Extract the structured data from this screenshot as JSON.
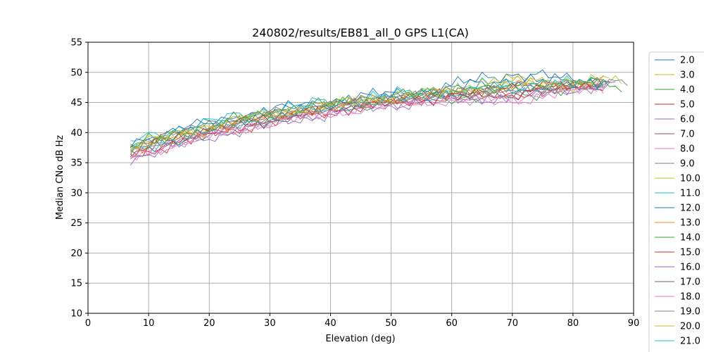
{
  "chart_data": {
    "type": "line",
    "title": "240802/results/EB81_all_0 GPS L1(CA)",
    "xlabel": "Elevation (deg)",
    "ylabel": "Median CNo dB Hz",
    "xlim": [
      0,
      90
    ],
    "ylim": [
      10,
      55
    ],
    "xticks": [
      "0",
      "10",
      "20",
      "30",
      "40",
      "50",
      "60",
      "70",
      "80",
      "90"
    ],
    "yticks": [
      "10",
      "15",
      "20",
      "25",
      "30",
      "35",
      "40",
      "45",
      "50",
      "55"
    ],
    "grid": true,
    "legend_position": "right, outside plot area",
    "x": [
      7,
      8,
      9,
      10,
      11,
      12,
      13,
      14,
      15,
      16,
      17,
      18,
      19,
      20,
      21,
      22,
      23,
      24,
      25,
      26,
      27,
      28,
      29,
      30,
      31,
      32,
      33,
      34,
      35,
      36,
      37,
      38,
      39,
      40,
      41,
      42,
      43,
      44,
      45,
      46,
      47,
      48,
      49,
      50,
      51,
      52,
      53,
      54,
      55,
      56,
      57,
      58,
      59,
      60,
      61,
      62,
      63,
      64,
      65,
      66,
      67,
      68,
      69,
      70,
      71,
      72,
      73,
      74,
      75,
      76,
      77,
      78,
      79,
      80,
      81,
      82,
      83,
      84,
      85,
      86,
      87,
      88,
      89
    ],
    "colors": [
      "#1f77b4",
      "#bcbd22",
      "#2ca02c",
      "#d62728",
      "#9467bd",
      "#8c564b",
      "#e377c2",
      "#7f7f7f",
      "#bcbd22",
      "#17becf",
      "#1f77b4",
      "#ff7f0e",
      "#2ca02c",
      "#d62728",
      "#9467bd",
      "#8c564b",
      "#e377c2",
      "#7f7f7f",
      "#bcbd22",
      "#17becf"
    ],
    "series": [
      {
        "name": "2.0",
        "start": 7,
        "end": 85,
        "y0": 38.0,
        "shape": 1.4,
        "bump": 1.5
      },
      {
        "name": "3.0",
        "start": 7,
        "end": 88,
        "y0": 37.5,
        "shape": 0.0,
        "bump": 0.3
      },
      {
        "name": "4.0",
        "start": 7,
        "end": 88,
        "y0": 36.5,
        "shape": -0.6,
        "bump": -0.8
      },
      {
        "name": "5.0",
        "start": 7,
        "end": 85,
        "y0": 36.0,
        "shape": -0.3,
        "bump": -0.4
      },
      {
        "name": "6.0",
        "start": 7,
        "end": 87,
        "y0": 35.5,
        "shape": -0.8,
        "bump": -0.6
      },
      {
        "name": "7.0",
        "start": 7,
        "end": 84,
        "y0": 37.0,
        "shape": 0.2,
        "bump": 0.1
      },
      {
        "name": "8.0",
        "start": 7,
        "end": 85,
        "y0": 35.8,
        "shape": -1.2,
        "bump": -1.1
      },
      {
        "name": "9.0",
        "start": 7,
        "end": 89,
        "y0": 37.5,
        "shape": 0.1,
        "bump": 0.0
      },
      {
        "name": "10.0",
        "start": 7,
        "end": 86,
        "y0": 37.2,
        "shape": 0.6,
        "bump": 1.0
      },
      {
        "name": "11.0",
        "start": 7,
        "end": 85,
        "y0": 38.5,
        "shape": 0.5,
        "bump": 0.4
      },
      {
        "name": "12.0",
        "start": 7,
        "end": 86,
        "y0": 38.2,
        "shape": 0.9,
        "bump": 0.7
      },
      {
        "name": "13.0",
        "start": 7,
        "end": 85,
        "y0": 37.0,
        "shape": 0.3,
        "bump": 0.2
      },
      {
        "name": "14.0",
        "start": 7,
        "end": 84,
        "y0": 37.8,
        "shape": 0.4,
        "bump": -0.2
      },
      {
        "name": "15.0",
        "start": 7,
        "end": 85,
        "y0": 36.2,
        "shape": -0.4,
        "bump": -0.3
      },
      {
        "name": "16.0",
        "start": 7,
        "end": 86,
        "y0": 36.0,
        "shape": -0.7,
        "bump": -0.5
      },
      {
        "name": "17.0",
        "start": 7,
        "end": 85,
        "y0": 36.8,
        "shape": -0.1,
        "bump": 0.0
      },
      {
        "name": "18.0",
        "start": 7,
        "end": 84,
        "y0": 35.9,
        "shape": -1.0,
        "bump": -0.9
      },
      {
        "name": "19.0",
        "start": 7,
        "end": 86,
        "y0": 37.3,
        "shape": 0.0,
        "bump": 0.2
      },
      {
        "name": "20.0",
        "start": 7,
        "end": 84,
        "y0": 37.6,
        "shape": 0.8,
        "bump": 0.9
      },
      {
        "name": "21.0",
        "start": 7,
        "end": 85,
        "y0": 36.6,
        "shape": 0.2,
        "bump": 0.1
      }
    ]
  }
}
